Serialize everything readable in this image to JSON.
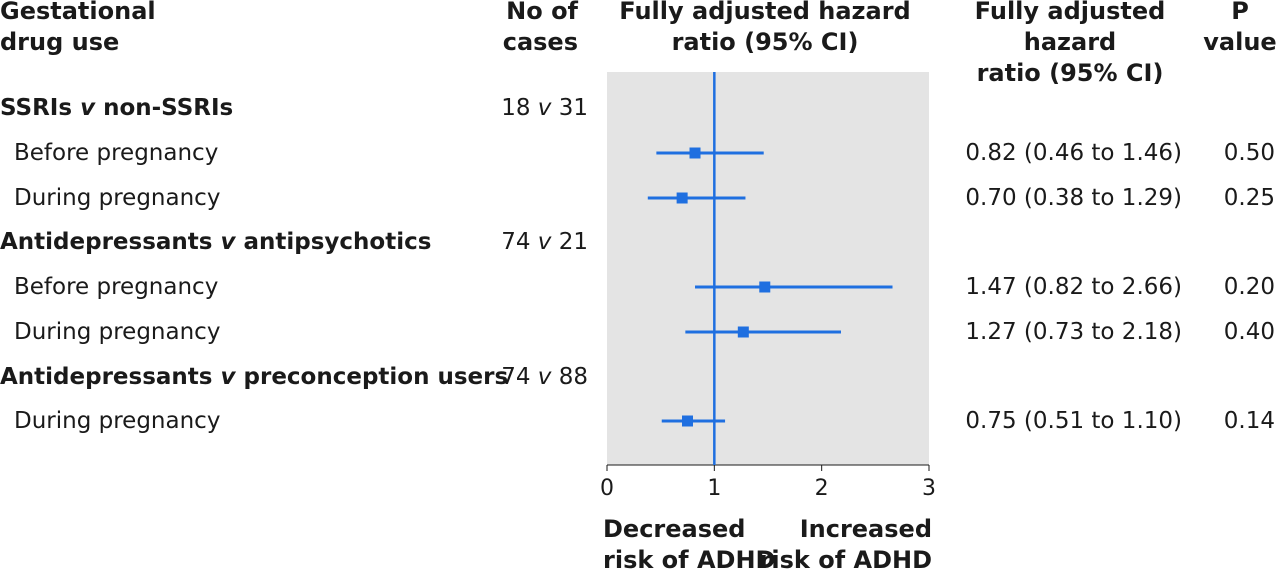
{
  "headers": {
    "drug": "Gestational\ndrug use",
    "cases": "No of\ncases",
    "plot": "Fully adjusted hazard\nratio (95% CI)",
    "ci": "Fully adjusted hazard\nratio (95% CI)",
    "p": "P\nvalue"
  },
  "groups": [
    {
      "label_pre": "SSRIs ",
      "label_v": "v",
      "label_post": " non-SSRIs",
      "cases_pre": "18 ",
      "cases_v": "v",
      "cases_post": " 31"
    },
    {
      "label_pre": "Antidepressants ",
      "label_v": "v",
      "label_post": " antipsychotics",
      "cases_pre": "74 ",
      "cases_v": "v",
      "cases_post": " 21"
    },
    {
      "label_pre": "Antidepressants ",
      "label_v": "v",
      "label_post": " preconception users",
      "cases_pre": "74 ",
      "cases_v": "v",
      "cases_post": " 88"
    }
  ],
  "rows": [
    {
      "label": "Before pregnancy",
      "ci_text": "0.82 (0.46 to 1.46)",
      "p": "0.50"
    },
    {
      "label": "During pregnancy",
      "ci_text": "0.70 (0.38 to 1.29)",
      "p": "0.25"
    },
    {
      "label": "Before pregnancy",
      "ci_text": "1.47 (0.82 to 2.66)",
      "p": "0.20"
    },
    {
      "label": "During pregnancy",
      "ci_text": "1.27 (0.73 to 2.18)",
      "p": "0.40"
    },
    {
      "label": "During pregnancy",
      "ci_text": "0.75 (0.51 to 1.10)",
      "p": "0.14"
    }
  ],
  "footer": {
    "decreased": "Decreased\nrisk of ADHD",
    "increased": "Increased\nrisk of ADHD"
  },
  "chart_data": {
    "type": "forest",
    "xlim": [
      0,
      3
    ],
    "xticks": [
      "0",
      "1",
      "2",
      "3"
    ],
    "reference_line": 1,
    "points": [
      {
        "label": "Before pregnancy",
        "hr": 0.82,
        "lo": 0.46,
        "hi": 1.46
      },
      {
        "label": "During pregnancy",
        "hr": 0.7,
        "lo": 0.38,
        "hi": 1.29
      },
      {
        "label": "Before pregnancy",
        "hr": 1.47,
        "lo": 0.82,
        "hi": 2.66
      },
      {
        "label": "During pregnancy",
        "hr": 1.27,
        "lo": 0.73,
        "hi": 2.18
      },
      {
        "label": "During pregnancy",
        "hr": 0.75,
        "lo": 0.51,
        "hi": 1.1
      }
    ],
    "colors": {
      "marker": "#1f6fe0",
      "panel": "#e4e4e4",
      "axis": "#1a1a1a"
    }
  }
}
